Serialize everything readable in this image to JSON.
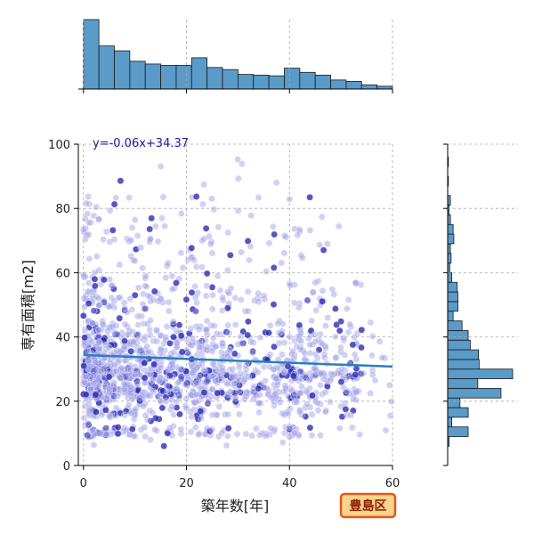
{
  "chart_data": {
    "type": "scatter",
    "title": "",
    "xlabel": "築年数[年]",
    "ylabel": "専有面積[m2]",
    "xlim": [
      -1,
      60
    ],
    "ylim": [
      0,
      100
    ],
    "xticks": [
      0,
      20,
      40,
      60
    ],
    "yticks": [
      0,
      20,
      40,
      60,
      80,
      100
    ],
    "grid": true,
    "regression": {
      "slope": -0.06,
      "intercept": 34.37,
      "label": "y=-0.06x+34.37",
      "color": "#2a7fc0"
    },
    "badge": "豊島区",
    "colors": {
      "point_light": "#9a9ae6",
      "point_dark": "#1f1fb0",
      "hist_fill": "#5a9bc9",
      "hist_edge": "#1a1a1a",
      "badge_bg": "#fbd38c",
      "badge_border": "#e0581a"
    },
    "marginal_x": {
      "bin_edges": [
        0,
        3,
        6,
        9,
        12,
        15,
        18,
        21,
        24,
        27,
        30,
        33,
        36,
        39,
        42,
        45,
        48,
        51,
        54,
        57,
        60
      ],
      "counts": [
        100,
        62,
        55,
        40,
        36,
        34,
        34,
        45,
        31,
        28,
        21,
        20,
        19,
        30,
        24,
        20,
        13,
        11,
        6,
        4
      ]
    },
    "marginal_y": {
      "bin_edges": [
        6,
        9,
        12,
        15,
        18,
        21,
        24,
        27,
        30,
        33,
        36,
        39,
        42,
        45,
        48,
        51,
        54,
        57,
        60,
        63,
        66,
        69,
        72,
        75,
        78,
        81,
        84,
        87,
        90,
        93,
        96,
        99
      ],
      "counts": [
        2,
        30,
        6,
        30,
        18,
        78,
        44,
        95,
        46,
        45,
        33,
        30,
        21,
        8,
        15,
        15,
        14,
        6,
        3,
        5,
        4,
        9,
        8,
        4,
        2,
        4,
        0,
        1,
        0,
        1,
        0
      ]
    }
  }
}
